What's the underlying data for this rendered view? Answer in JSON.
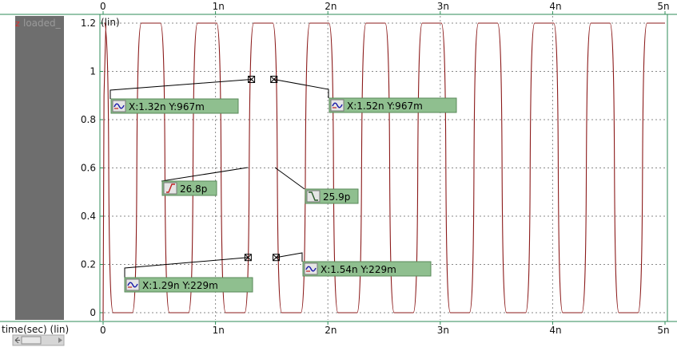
{
  "chart_data": {
    "type": "line",
    "series": [
      {
        "name": "loaded_",
        "color": "#8b1a1a"
      }
    ],
    "period_ns": 0.5,
    "first_rise_ns": 0.3,
    "first_fall_ns": 0.05,
    "high_level": 1.2,
    "low_level": 0.0,
    "rise_time_ps": 26.8,
    "fall_time_ps": 25.9,
    "xlim": [
      0,
      5
    ],
    "ylim": [
      -0.02,
      1.22
    ],
    "xlabel": "time(sec) (lin)",
    "ylabel": "(lin)",
    "x_ticks": [
      {
        "v": 0,
        "label": "0"
      },
      {
        "v": 1,
        "label": "1n"
      },
      {
        "v": 2,
        "label": "2n"
      },
      {
        "v": 3,
        "label": "3n"
      },
      {
        "v": 4,
        "label": "4n"
      },
      {
        "v": 5,
        "label": "5n"
      }
    ],
    "y_ticks": [
      {
        "v": 0,
        "label": "0"
      },
      {
        "v": 0.2,
        "label": "0.2"
      },
      {
        "v": 0.4,
        "label": "0.4"
      },
      {
        "v": 0.6,
        "label": "0.6"
      },
      {
        "v": 0.8,
        "label": "0.8"
      },
      {
        "v": 1.0,
        "label": "1"
      },
      {
        "v": 1.2,
        "label": "1.2"
      }
    ],
    "grid": true,
    "legend_position": "left panel",
    "legend_label": "loaded_",
    "markers": [
      {
        "type": "point",
        "x": 1.32,
        "y": 0.967,
        "text": "X:1.32n Y:967m"
      },
      {
        "type": "point",
        "x": 1.52,
        "y": 0.967,
        "text": "X:1.52n Y:967m"
      },
      {
        "type": "point",
        "x": 1.29,
        "y": 0.229,
        "text": "X:1.29n Y:229m"
      },
      {
        "type": "point",
        "x": 1.54,
        "y": 0.229,
        "text": "X:1.54n Y:229m"
      },
      {
        "type": "rise",
        "text": "26.8p"
      },
      {
        "type": "fall",
        "text": "25.9p"
      }
    ]
  }
}
